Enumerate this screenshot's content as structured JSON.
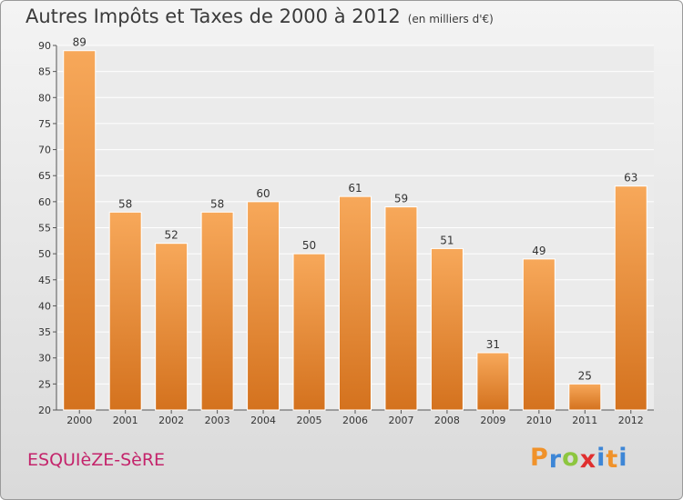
{
  "title": "Autres Impôts et Taxes de 2000 à 2012",
  "unit_note": "(en milliers d'€)",
  "commune": "ESQUIèZE-SèRE",
  "brand": {
    "letters": [
      "P",
      "r",
      "o",
      "x",
      "i",
      "t",
      "i"
    ],
    "colors": [
      "#f0922a",
      "#3d86d6",
      "#8dc63f",
      "#e02f2f",
      "#3d86d6",
      "#f0922a",
      "#3d86d6"
    ]
  },
  "colors": {
    "bar_top": "#f7a85a",
    "bar_bottom": "#d4721e",
    "commune": "#c4246b"
  },
  "chart_data": {
    "type": "bar",
    "categories": [
      "2000",
      "2001",
      "2002",
      "2003",
      "2004",
      "2005",
      "2006",
      "2007",
      "2008",
      "2009",
      "2010",
      "2011",
      "2012"
    ],
    "values": [
      89,
      58,
      52,
      58,
      60,
      50,
      61,
      59,
      51,
      31,
      49,
      25,
      63
    ],
    "title": "Autres Impôts et Taxes de 2000 à 2012",
    "xlabel": "",
    "ylabel": "",
    "ylim": [
      20,
      90
    ],
    "yticks": [
      20,
      25,
      30,
      35,
      40,
      45,
      50,
      55,
      60,
      65,
      70,
      75,
      80,
      85,
      90
    ],
    "grid": true,
    "data_labels": true
  }
}
